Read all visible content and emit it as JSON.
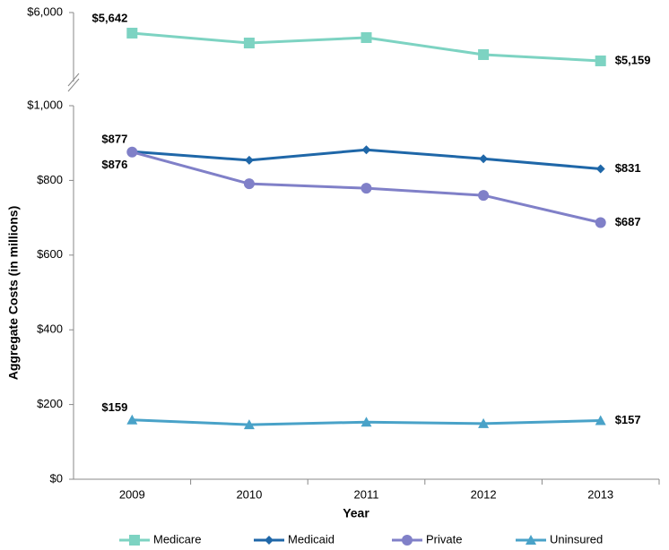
{
  "chart_data": [
    {
      "type": "line",
      "ylim": [
        4800,
        6000
      ],
      "yticks": [
        {
          "value": 6000,
          "label": "$6,000"
        }
      ],
      "series": [
        {
          "name": "Medicare",
          "color": "#7dd3c2",
          "marker": "square",
          "values": [
            5642,
            5470,
            5564,
            5268,
            5159
          ],
          "value_labels": [
            "$5,642",
            null,
            null,
            null,
            "$5,159"
          ]
        }
      ]
    },
    {
      "type": "line",
      "xlabel": "Year",
      "ylabel": "Aggregate Costs (in millions)",
      "categories": [
        "2009",
        "2010",
        "2011",
        "2012",
        "2013"
      ],
      "ylim": [
        0,
        1000
      ],
      "yticks": [
        {
          "value": 0,
          "label": "$0"
        },
        {
          "value": 200,
          "label": "$200"
        },
        {
          "value": 400,
          "label": "$400"
        },
        {
          "value": 600,
          "label": "$600"
        },
        {
          "value": 800,
          "label": "$800"
        },
        {
          "value": 1000,
          "label": "$1,000"
        }
      ],
      "series": [
        {
          "name": "Medicaid",
          "color": "#1f67a8",
          "marker": "diamond",
          "values": [
            877,
            854,
            882,
            858,
            831
          ],
          "value_labels": [
            "$877",
            null,
            null,
            null,
            "$831"
          ]
        },
        {
          "name": "Private",
          "color": "#8080c8",
          "marker": "circle",
          "values": [
            876,
            791,
            779,
            760,
            687
          ],
          "value_labels": [
            "$876",
            null,
            null,
            null,
            "$687"
          ]
        },
        {
          "name": "Uninsured",
          "color": "#49a2c8",
          "marker": "triangle",
          "values": [
            159,
            146,
            153,
            149,
            157
          ],
          "value_labels": [
            "$159",
            null,
            null,
            null,
            "$157"
          ]
        }
      ],
      "legend": "bottom"
    }
  ]
}
